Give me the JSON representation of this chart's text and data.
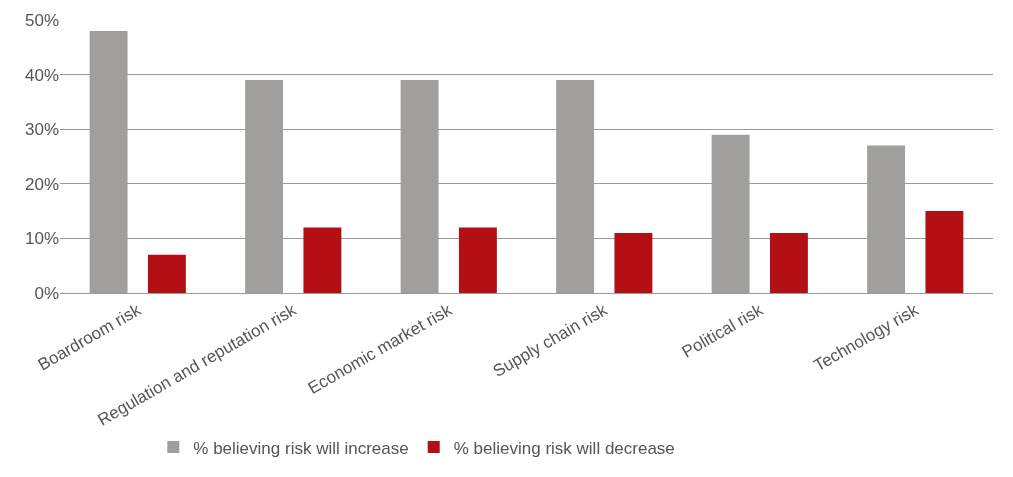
{
  "chart_data": {
    "type": "bar",
    "categories": [
      "Boardroom risk",
      "Regulation and reputation risk",
      "Economic market risk",
      "Supply chain risk",
      "Political risk",
      "Technology risk"
    ],
    "series": [
      {
        "name": "% believing risk will increase",
        "color": "#a09f9e",
        "values": [
          48,
          39,
          39,
          39,
          29,
          27
        ]
      },
      {
        "name": "% believing risk will decrease",
        "color": "#b50f16",
        "values": [
          7,
          12,
          12,
          11,
          11,
          15
        ]
      }
    ],
    "ylim": [
      0,
      50
    ],
    "yticks": [
      {
        "value": 0,
        "label": "0%"
      },
      {
        "value": 10,
        "label": "10%"
      },
      {
        "value": 20,
        "label": "20%"
      },
      {
        "value": 30,
        "label": "30%"
      },
      {
        "value": 40,
        "label": "40%"
      },
      {
        "value": 50,
        "label": "50%"
      }
    ],
    "grid": "y",
    "legend": "bottom"
  }
}
